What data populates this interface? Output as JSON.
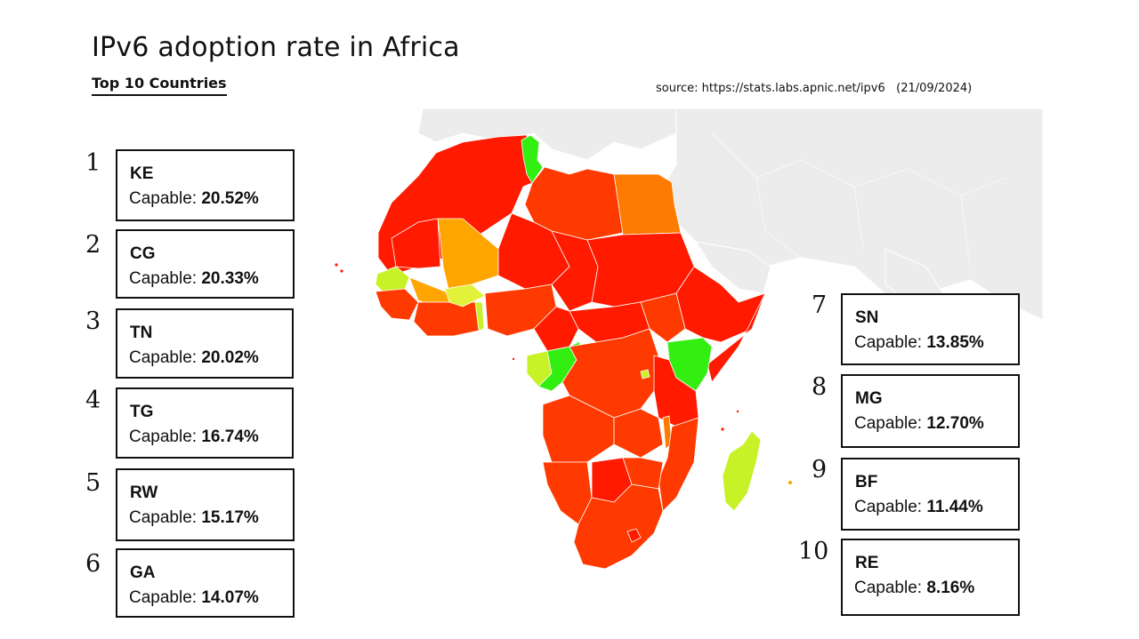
{
  "header": {
    "title": "IPv6 adoption rate in Africa",
    "subtitle": "Top 10 Countries",
    "source": "source: https://stats.labs.apnic.net/ipv6   (21/09/2024)"
  },
  "capable_label": "Capable:",
  "countries": [
    {
      "rank": "1",
      "code": "KE",
      "value": "20.52%"
    },
    {
      "rank": "2",
      "code": "CG",
      "value": "20.33%"
    },
    {
      "rank": "3",
      "code": "TN",
      "value": "20.02%"
    },
    {
      "rank": "4",
      "code": "TG",
      "value": "16.74%"
    },
    {
      "rank": "5",
      "code": "RW",
      "value": "15.17%"
    },
    {
      "rank": "6",
      "code": "GA",
      "value": "14.07%"
    },
    {
      "rank": "7",
      "code": "SN",
      "value": "13.85%"
    },
    {
      "rank": "8",
      "code": "MG",
      "value": "12.70%"
    },
    {
      "rank": "9",
      "code": "BF",
      "value": "11.44%"
    },
    {
      "rank": "10",
      "code": "RE",
      "value": "8.16%"
    }
  ],
  "map_colors": {
    "background_land": "#ececec",
    "low": "#ff1a00",
    "mid_low": "#ff3a00",
    "mid": "#ff7a00",
    "mid_high": "#ffa500",
    "high": "#c8f228",
    "top": "#33ee11"
  }
}
